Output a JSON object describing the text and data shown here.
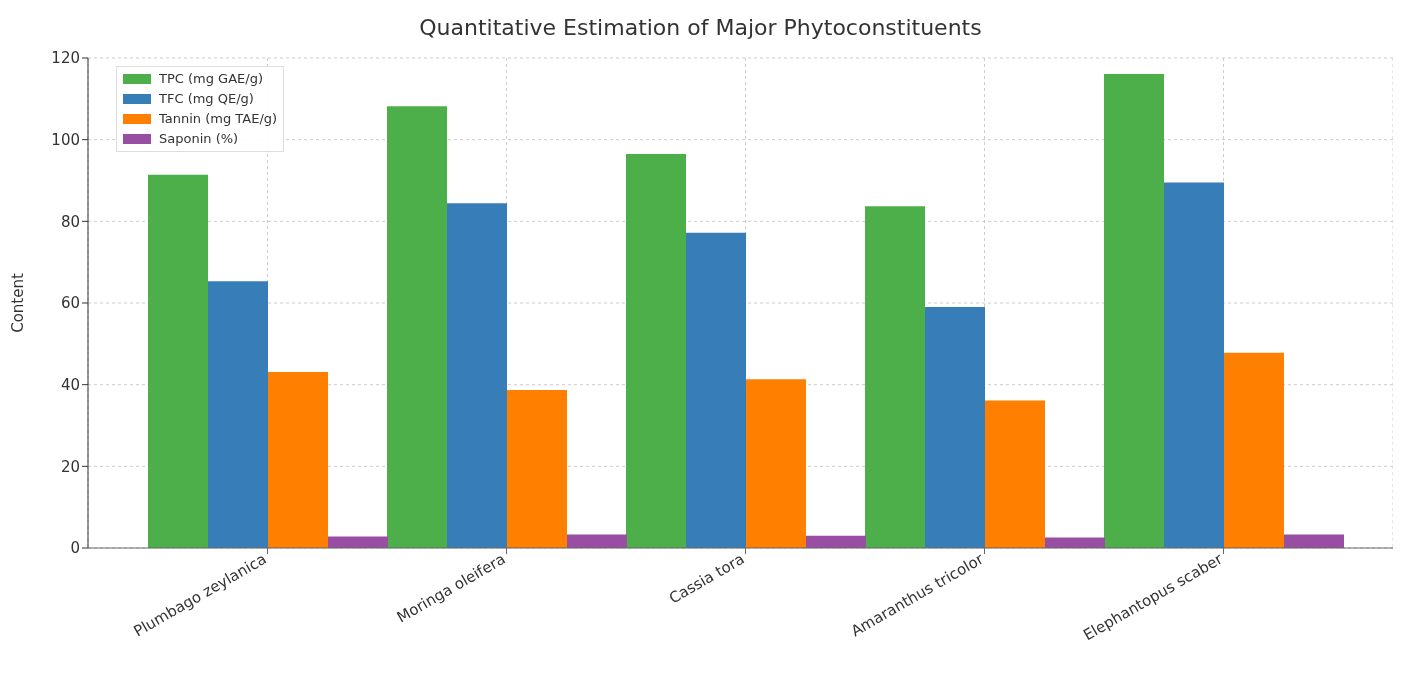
{
  "chart_data": {
    "type": "bar",
    "title": "Quantitative Estimation of Major Phytoconstituents",
    "ylabel": "Content",
    "categories": [
      "Plumbago zeylanica",
      "Moringa oleifera",
      "Cassia tora",
      "Amaranthus tricolor",
      "Elephantopus scaber"
    ],
    "series": [
      {
        "name": "TPC (mg GAE/g)",
        "color": "#4daf4a",
        "values": [
          91.4,
          108.2,
          96.5,
          83.7,
          116.1
        ]
      },
      {
        "name": "TFC (mg QE/g)",
        "color": "#377eb8",
        "values": [
          65.3,
          84.4,
          77.2,
          59.0,
          89.5
        ]
      },
      {
        "name": "Tannin (mg TAE/g)",
        "color": "#ff7f00",
        "values": [
          43.1,
          38.7,
          41.3,
          36.1,
          47.8
        ]
      },
      {
        "name": "Saponin (%)",
        "color": "#984ea3",
        "values": [
          2.8,
          3.3,
          3.0,
          2.6,
          3.3
        ]
      }
    ],
    "ylim": [
      0,
      120
    ],
    "yticks": [
      0,
      20,
      40,
      60,
      80,
      100,
      120
    ],
    "grid": true,
    "legend": "top left"
  }
}
